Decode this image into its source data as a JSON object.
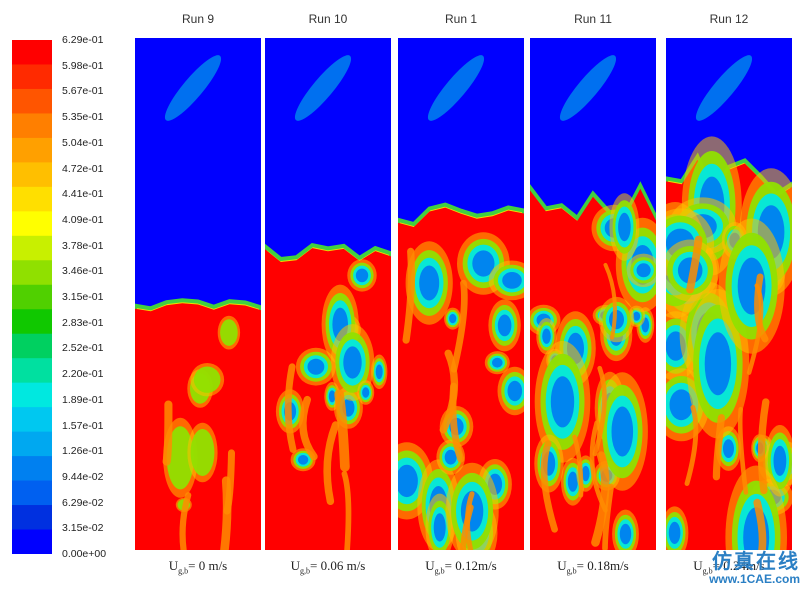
{
  "chart_data": {
    "type": "heatmap",
    "colorbar": {
      "labels": [
        "6.29e-01",
        "5.98e-01",
        "5.67e-01",
        "5.35e-01",
        "5.04e-01",
        "4.72e-01",
        "4.41e-01",
        "4.09e-01",
        "3.78e-01",
        "3.46e-01",
        "3.15e-01",
        "2.83e-01",
        "2.52e-01",
        "2.20e-01",
        "1.89e-01",
        "1.57e-01",
        "1.26e-01",
        "9.44e-02",
        "6.29e-02",
        "3.15e-02",
        "0.00e+00"
      ],
      "colors": [
        "#ff0000",
        "#ff2a00",
        "#ff5500",
        "#ff7f00",
        "#ffa000",
        "#ffbf00",
        "#ffdf00",
        "#ffff00",
        "#c8f000",
        "#90e000",
        "#50d000",
        "#10c800",
        "#00d060",
        "#00e0a0",
        "#00e8e0",
        "#00c8f0",
        "#00a8f0",
        "#0080f0",
        "#0060f0",
        "#0030e0",
        "#0000ff"
      ],
      "min": 0.0,
      "max": 0.629
    },
    "panels": [
      {
        "title": "Run 9",
        "caption_sym": "U",
        "caption_sub": "g,b",
        "caption_val": "= 0 m/s",
        "bed_fraction": 0.48
      },
      {
        "title": "Run 10",
        "caption_sym": "U",
        "caption_sub": "g,b",
        "caption_val": "= 0.06 m/s",
        "bed_fraction": 0.58
      },
      {
        "title": "Run 1",
        "caption_sym": "U",
        "caption_sub": "g,b",
        "caption_val": "= 0.12m/s",
        "bed_fraction": 0.65
      },
      {
        "title": "Run 11",
        "caption_sym": "U",
        "caption_sub": "g,b",
        "caption_val": "= 0.18m/s",
        "bed_fraction": 0.68
      },
      {
        "title": "Run 12",
        "caption_sym": "U",
        "caption_sub": "g,b",
        "caption_val": "= 0.24m/s",
        "bed_fraction": 0.73
      }
    ]
  },
  "watermark": {
    "chinese": "仿真在线",
    "url": "www.1CAE.com"
  }
}
